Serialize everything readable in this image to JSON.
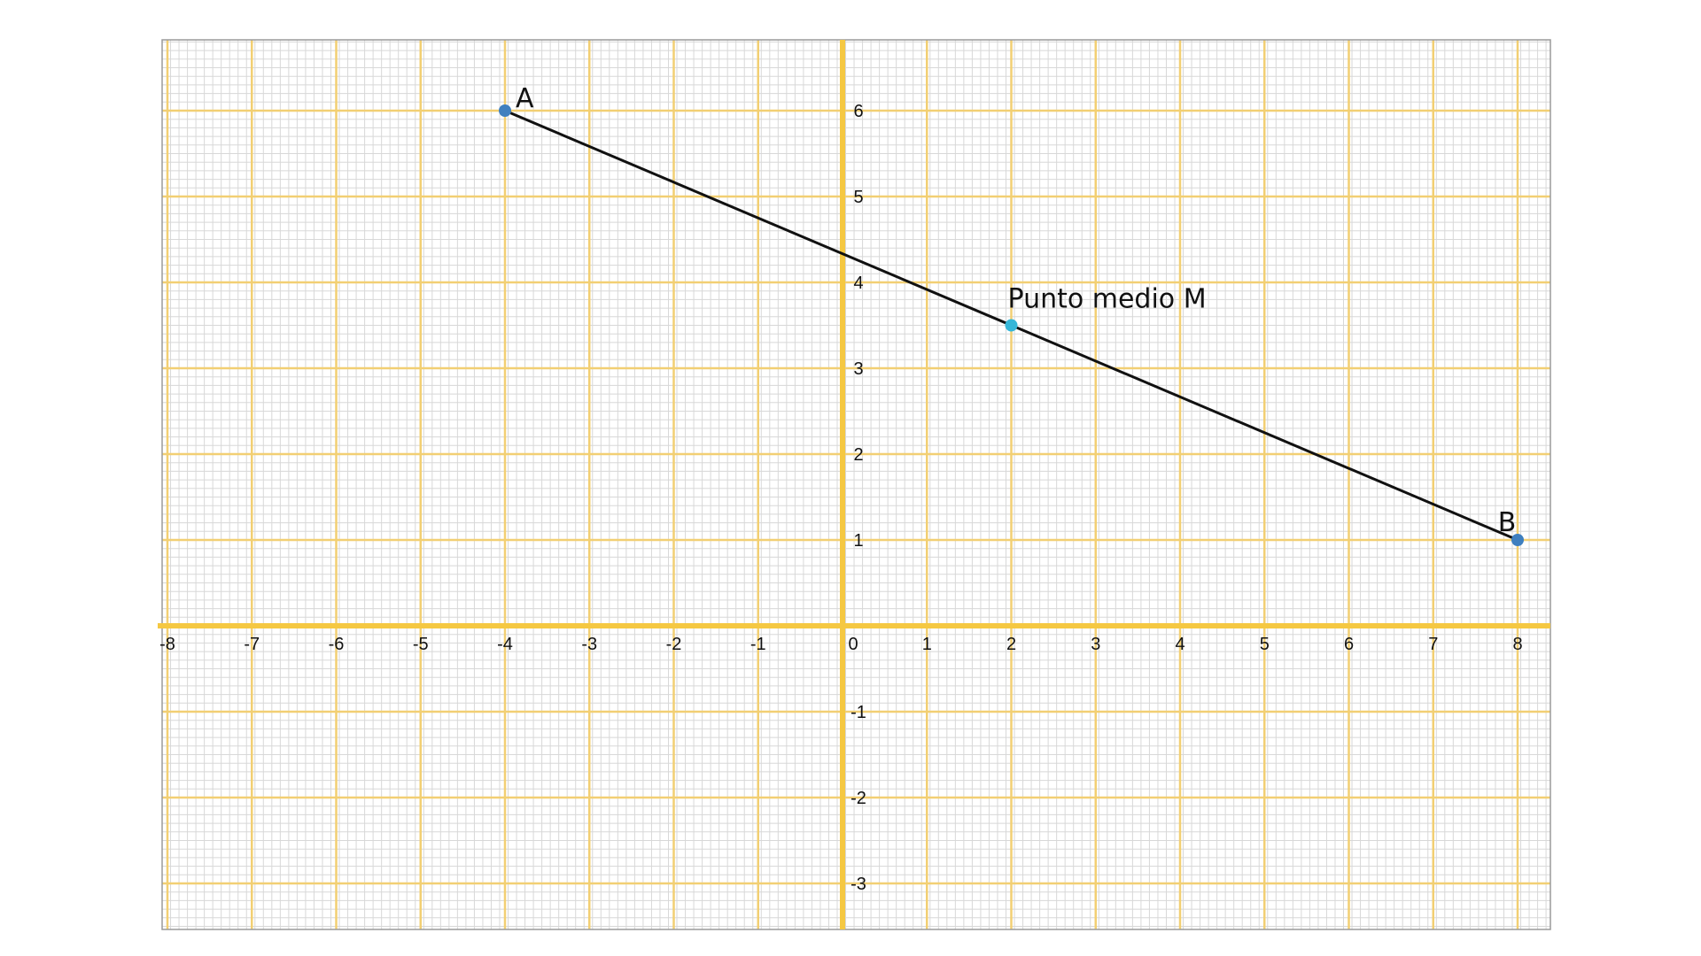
{
  "chart_data": {
    "type": "coordinate-plane",
    "xlim": [
      -8,
      8
    ],
    "ylim": [
      -3,
      6
    ],
    "grid": true,
    "x_ticks": [
      "-8",
      "-7",
      "-6",
      "-5",
      "-4",
      "-3",
      "-2",
      "-1",
      "0",
      "1",
      "2",
      "3",
      "4",
      "5",
      "6",
      "7",
      "8"
    ],
    "y_ticks": [
      "6",
      "5",
      "4",
      "3",
      "2",
      "1",
      "-1",
      "-2",
      "-3"
    ],
    "segment": {
      "from": "A",
      "to": "B"
    },
    "points": [
      {
        "label": "A",
        "x": -4,
        "y": 6,
        "color": "#3f7fbf"
      },
      {
        "label": "B",
        "x": 8,
        "y": 1,
        "color": "#3f7fbf"
      },
      {
        "label": "Punto medio M",
        "x": 2,
        "y": 3.5,
        "color": "#35b6d8"
      }
    ],
    "colors": {
      "major_grid": "#f2cf73",
      "axes": "#f5c842",
      "minor_grid": "#d8d8d8",
      "segment": "#111111"
    }
  }
}
